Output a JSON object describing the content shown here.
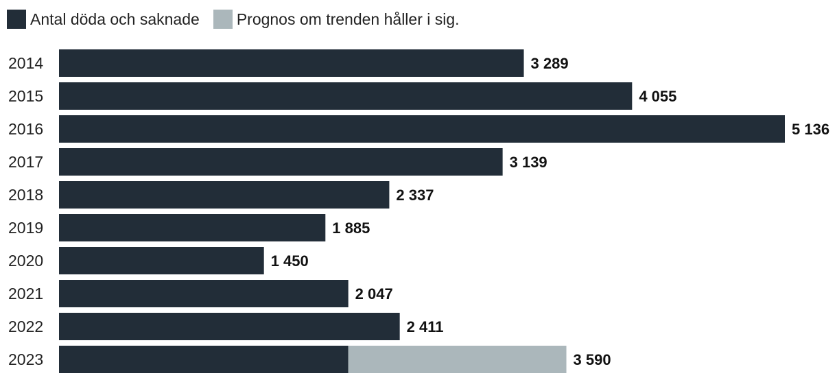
{
  "colors": {
    "actual": "#222d38",
    "forecast": "#abb7bb"
  },
  "chart_data": {
    "type": "bar",
    "orientation": "horizontal",
    "stacked": true,
    "legend_position": "top-left",
    "grid": false,
    "xlim": [
      0,
      5136
    ],
    "categories": [
      "2014",
      "2015",
      "2016",
      "2017",
      "2018",
      "2019",
      "2020",
      "2021",
      "2022",
      "2023"
    ],
    "series": [
      {
        "name": "Antal döda och saknade",
        "values": [
          3289,
          4055,
          5136,
          3139,
          2337,
          1885,
          1450,
          2047,
          2411,
          2047
        ]
      },
      {
        "name": "Prognos om trenden håller i sig.",
        "values": [
          0,
          0,
          0,
          0,
          0,
          0,
          0,
          0,
          0,
          1543
        ]
      }
    ],
    "data_labels": [
      "3 289",
      "4 055",
      "5 136",
      "3 139",
      "2 337",
      "1 885",
      "1 450",
      "2 047",
      "2 411",
      "3 590"
    ]
  }
}
